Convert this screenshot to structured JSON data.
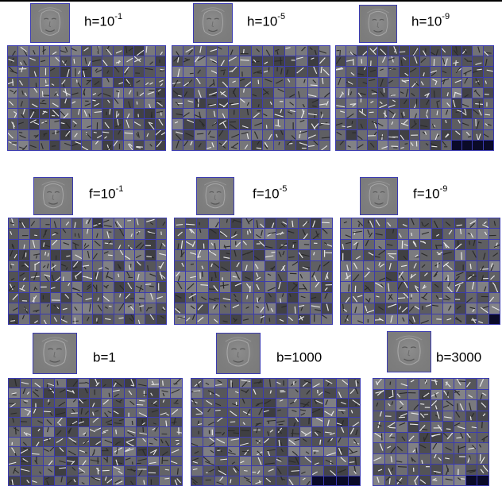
{
  "panels": [
    {
      "param": "h=10",
      "exp": "-1",
      "cols": 15,
      "rows": 10,
      "dark_tail": 0,
      "tone": 0.5
    },
    {
      "param": "h=10",
      "exp": "-5",
      "cols": 14,
      "rows": 10,
      "dark_tail": 0,
      "tone": 0.5
    },
    {
      "param": "h=10",
      "exp": "-9",
      "cols": 15,
      "rows": 10,
      "dark_tail": 4,
      "tone": 0.55
    },
    {
      "param": "f=10",
      "exp": "-1",
      "cols": 15,
      "rows": 10,
      "dark_tail": 0,
      "tone": 0.55
    },
    {
      "param": "f=10",
      "exp": "-5",
      "cols": 14,
      "rows": 10,
      "dark_tail": 0,
      "tone": 0.6
    },
    {
      "param": "f=10",
      "exp": "-9",
      "cols": 14,
      "rows": 10,
      "dark_tail": 1,
      "tone": 0.6
    },
    {
      "param": "b=1",
      "exp": "",
      "cols": 15,
      "rows": 11,
      "dark_tail": 0,
      "tone": 0.5
    },
    {
      "param": "b=1000",
      "exp": "",
      "cols": 14,
      "rows": 11,
      "dark_tail": 4,
      "tone": 0.5
    },
    {
      "param": "b=3000",
      "exp": "",
      "cols": 10,
      "rows": 10,
      "dark_tail": 2,
      "tone": 0.6
    }
  ],
  "colors": {
    "grid_line": "#3b3bb0",
    "tile_base": "#808080",
    "dark_tile": "#0a0a28"
  }
}
